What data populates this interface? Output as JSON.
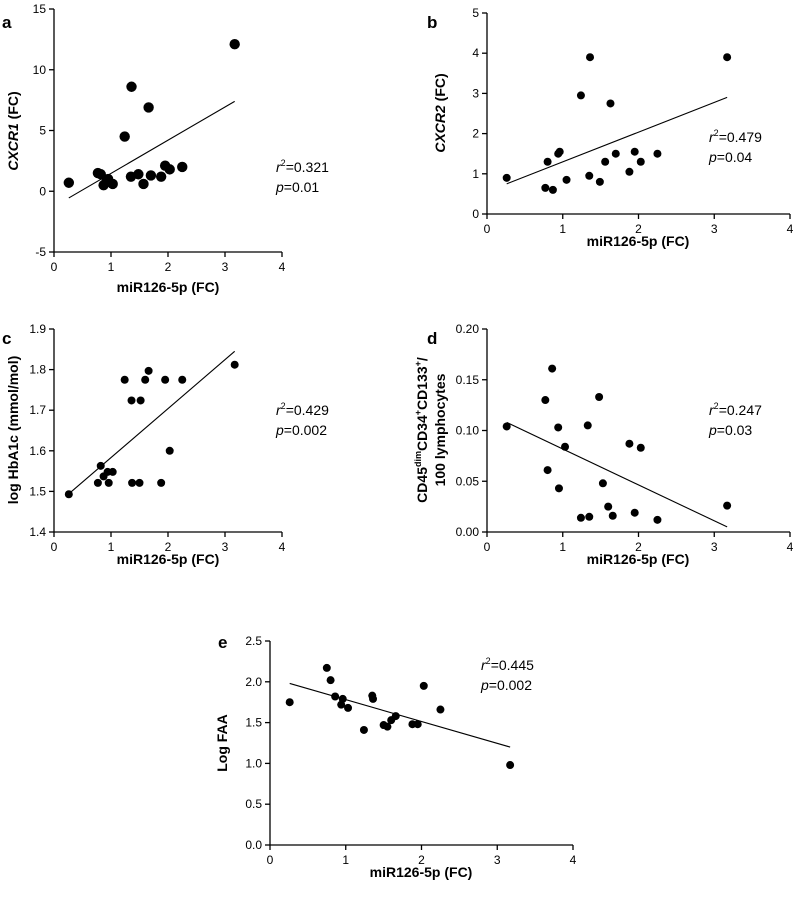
{
  "chart_data": [
    {
      "type": "scatter",
      "panel": "a",
      "xlabel": "miR126-5p (FC)",
      "ylabel_italic": "CXCR1",
      "ylabel_suffix": " (FC)",
      "xlim": [
        0,
        4
      ],
      "ylim": [
        -5,
        15
      ],
      "xticks": [
        0,
        1,
        2,
        3,
        4
      ],
      "yticks": [
        -5,
        0,
        5,
        10,
        15
      ],
      "x": [
        0.26,
        0.77,
        0.82,
        0.87,
        0.92,
        0.95,
        1.03,
        1.24,
        1.35,
        1.36,
        1.48,
        1.57,
        1.66,
        1.7,
        1.88,
        1.95,
        2.03,
        2.25,
        3.17
      ],
      "y": [
        0.7,
        1.5,
        1.4,
        0.5,
        0.8,
        1.0,
        0.6,
        4.5,
        1.2,
        8.6,
        1.4,
        0.6,
        6.9,
        1.3,
        1.2,
        2.1,
        1.8,
        2.0,
        12.1
      ],
      "trend": [
        [
          0.26,
          -0.55
        ],
        [
          3.17,
          7.4
        ]
      ],
      "r2": "0.321",
      "p": "0.01",
      "marker_size": "large"
    },
    {
      "type": "scatter",
      "panel": "b",
      "xlabel": "miR126-5p (FC)",
      "ylabel_italic": "CXCR2",
      "ylabel_suffix": " (FC)",
      "xlim": [
        0,
        4
      ],
      "ylim": [
        0,
        5
      ],
      "xticks": [
        0,
        1,
        2,
        3,
        4
      ],
      "yticks": [
        0,
        1,
        2,
        3,
        4,
        5
      ],
      "x": [
        0.26,
        0.77,
        0.8,
        0.87,
        0.94,
        0.96,
        1.05,
        1.24,
        1.35,
        1.36,
        1.49,
        1.56,
        1.63,
        1.7,
        1.88,
        1.95,
        2.03,
        2.25,
        3.17
      ],
      "y": [
        0.9,
        0.65,
        1.3,
        0.6,
        1.5,
        1.55,
        0.85,
        2.95,
        0.95,
        3.9,
        0.8,
        1.3,
        2.75,
        1.5,
        1.05,
        1.55,
        1.3,
        1.5,
        3.9
      ],
      "trend": [
        [
          0.26,
          0.75
        ],
        [
          3.17,
          2.9
        ]
      ],
      "r2": "0.479",
      "p": "0.04",
      "marker_size": "small"
    },
    {
      "type": "scatter",
      "panel": "c",
      "xlabel": "miR126-5p (FC)",
      "ylabel": "log HbA1c (mmol/mol)",
      "xlim": [
        0,
        4
      ],
      "ylim": [
        1.4,
        1.9
      ],
      "xticks": [
        0,
        1,
        2,
        3,
        4
      ],
      "yticks": [
        1.4,
        1.5,
        1.6,
        1.7,
        1.8,
        1.9
      ],
      "x": [
        0.26,
        0.77,
        0.82,
        0.87,
        0.94,
        0.96,
        1.03,
        1.24,
        1.36,
        1.37,
        1.5,
        1.52,
        1.6,
        1.66,
        1.88,
        1.95,
        2.03,
        2.25,
        3.17
      ],
      "y": [
        1.493,
        1.521,
        1.563,
        1.537,
        1.548,
        1.521,
        1.548,
        1.775,
        1.724,
        1.521,
        1.521,
        1.724,
        1.775,
        1.797,
        1.521,
        1.775,
        1.6,
        1.775,
        1.812
      ],
      "trend": [
        [
          0.26,
          1.494
        ],
        [
          3.17,
          1.845
        ]
      ],
      "r2": "0.429",
      "p": "0.002",
      "marker_size": "small"
    },
    {
      "type": "scatter",
      "panel": "d",
      "xlabel": "miR126-5p (FC)",
      "ylabel_line1_parts": [
        "CD45",
        "dim",
        "CD34",
        "+",
        "CD133",
        "+",
        "/"
      ],
      "ylabel_line2": "100 lymphocytes",
      "xlim": [
        0,
        4
      ],
      "ylim": [
        0,
        0.2
      ],
      "xticks": [
        0,
        1,
        2,
        3,
        4
      ],
      "yticks": [
        0,
        0.05,
        0.1,
        0.15,
        0.2
      ],
      "ytick_labels": [
        "0.00",
        "0.05",
        "0.10",
        "0.15",
        "0.20"
      ],
      "x": [
        0.26,
        0.77,
        0.8,
        0.86,
        0.94,
        0.95,
        1.03,
        1.24,
        1.33,
        1.35,
        1.48,
        1.53,
        1.6,
        1.66,
        1.88,
        1.95,
        2.03,
        2.25,
        3.17
      ],
      "y": [
        0.104,
        0.13,
        0.061,
        0.161,
        0.103,
        0.043,
        0.084,
        0.014,
        0.105,
        0.015,
        0.133,
        0.048,
        0.025,
        0.016,
        0.087,
        0.019,
        0.083,
        0.012,
        0.026
      ],
      "trend": [
        [
          0.26,
          0.108
        ],
        [
          3.17,
          0.005
        ]
      ],
      "r2": "0.247",
      "p": "0.03",
      "marker_size": "small"
    },
    {
      "type": "scatter",
      "panel": "e",
      "xlabel": "miR126-5p (FC)",
      "ylabel": "Log FAA",
      "xlim": [
        0,
        4
      ],
      "ylim": [
        0,
        2.5
      ],
      "xticks": [
        0,
        1,
        2,
        3,
        4
      ],
      "yticks": [
        0,
        0.5,
        1,
        1.5,
        2,
        2.5
      ],
      "ytick_labels": [
        "0.0",
        "0.5",
        "1.0",
        "1.5",
        "2.0",
        "2.5"
      ],
      "x": [
        0.26,
        0.75,
        0.8,
        0.86,
        0.94,
        0.96,
        1.03,
        1.24,
        1.35,
        1.36,
        1.5,
        1.55,
        1.6,
        1.66,
        1.88,
        1.95,
        2.03,
        2.25,
        3.17
      ],
      "y": [
        1.75,
        2.17,
        2.02,
        1.82,
        1.72,
        1.79,
        1.68,
        1.41,
        1.83,
        1.79,
        1.47,
        1.45,
        1.53,
        1.58,
        1.48,
        1.48,
        1.95,
        1.66,
        0.98
      ],
      "trend": [
        [
          0.26,
          1.98
        ],
        [
          3.17,
          1.2
        ]
      ],
      "r2": "0.445",
      "p": "0.002",
      "marker_size": "small"
    }
  ]
}
